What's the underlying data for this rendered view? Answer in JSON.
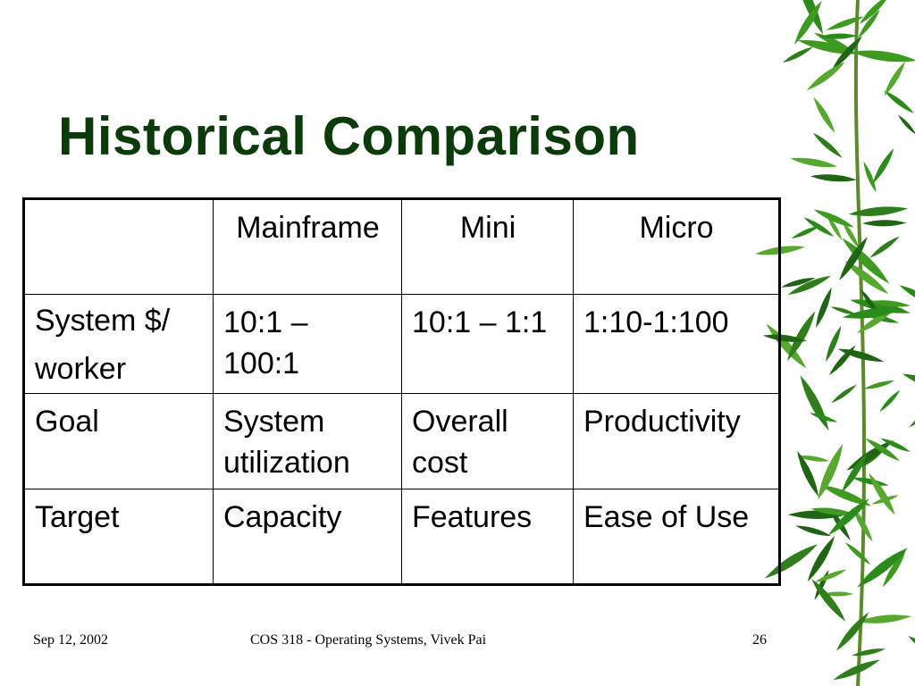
{
  "title": "Historical Comparison",
  "table": {
    "header": [
      "",
      "Mainframe",
      "Mini",
      "Micro"
    ],
    "rows": [
      [
        "System $/ worker",
        "10:1 – 100:1",
        "10:1 – 1:1",
        "1:10-1:100"
      ],
      [
        "Goal",
        "System utilization",
        "Overall cost",
        "Productivity"
      ],
      [
        "Target",
        "Capacity",
        "Features",
        "Ease of Use"
      ]
    ]
  },
  "footer": {
    "date": "Sep 12, 2002",
    "course": "COS 318 - Operating Systems, Vivek Pai",
    "page": "26"
  }
}
